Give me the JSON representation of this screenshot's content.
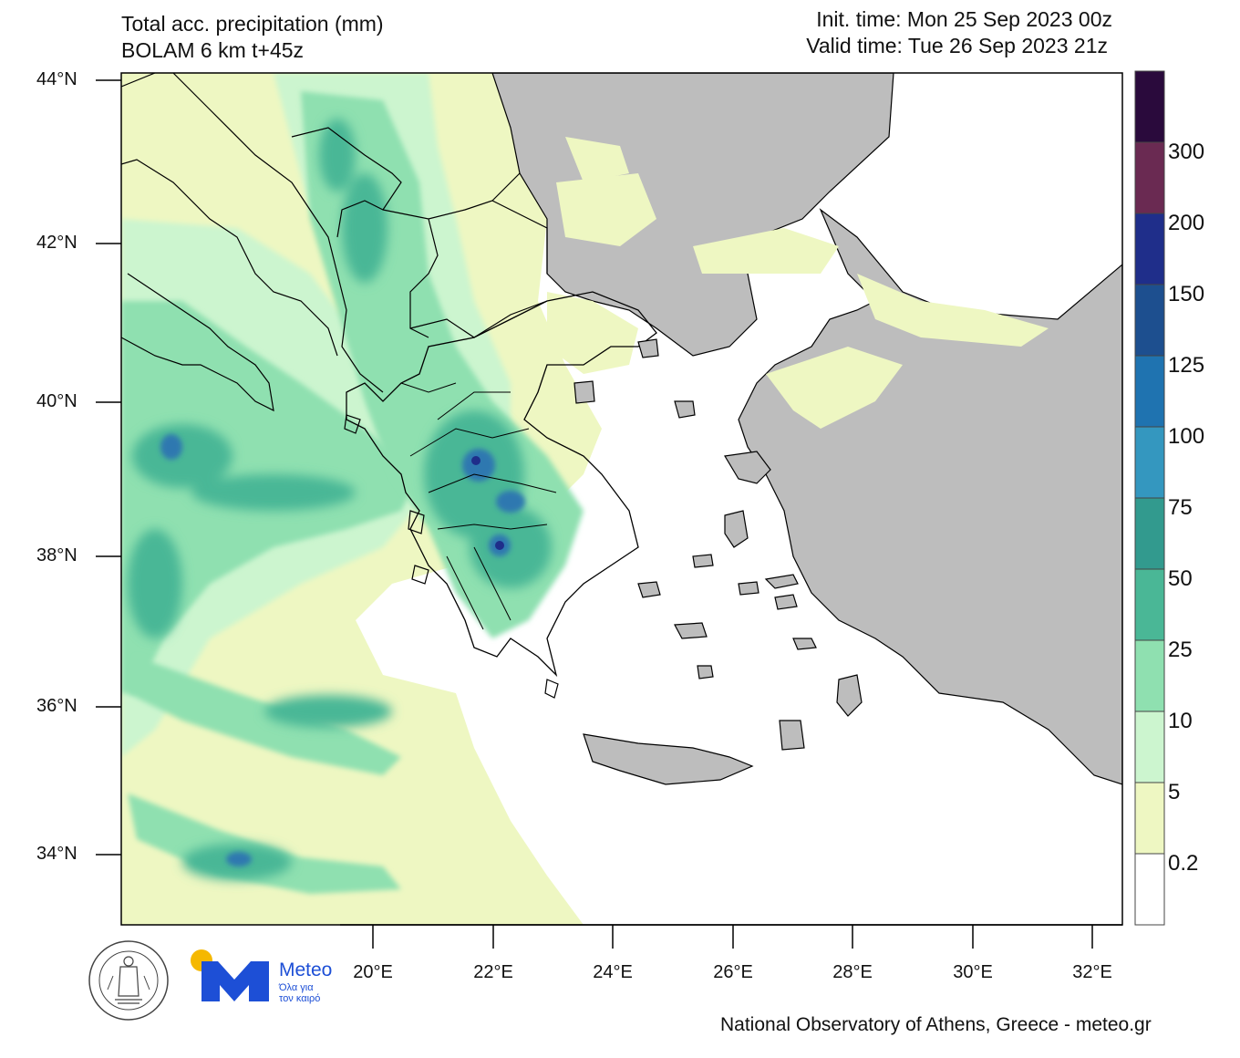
{
  "header": {
    "title": "Total acc. precipitation (mm)",
    "model": "BOLAM 6 km t+45z",
    "init_time": "Init. time: Mon 25 Sep 2023 00z",
    "valid_time": "Valid time: Tue 26 Sep 2023 21z"
  },
  "axes": {
    "lat_labels": [
      "44°N",
      "42°N",
      "40°N",
      "38°N",
      "36°N",
      "34°N"
    ],
    "lon_labels": [
      "20°E",
      "22°E",
      "24°E",
      "26°E",
      "28°E",
      "30°E",
      "32°E"
    ]
  },
  "colorbar": {
    "labels": [
      "300",
      "200",
      "150",
      "125",
      "100",
      "75",
      "50",
      "25",
      "10",
      "5",
      "0.2"
    ],
    "colors": [
      "#2a0a3c",
      "#6a2a52",
      "#1f2e8a",
      "#1d4f8f",
      "#1f73b0",
      "#3497bf",
      "#329a8e",
      "#4ab796",
      "#8fe0b0",
      "#ccf5cf",
      "#eef7c2",
      "#ffffff"
    ]
  },
  "legend_colors": {
    "land_dry": "#bdbdbd",
    "sea_dry": "#ffffff",
    "precip_light": "#eef7c2",
    "precip_5_10": "#ccf5cf",
    "precip_10_25": "#8fe0b0",
    "precip_25_50": "#4ab796",
    "precip_50_75": "#329a8e",
    "precip_high": "#1f2e8a"
  },
  "footer": {
    "credit": "National Observatory of Athens, Greece - meteo.gr",
    "meteo_brand": "Meteo",
    "meteo_tagline": "Όλα για\nτον καιρό"
  },
  "logos": {
    "noa_seal_text": "ΕΘΝΙΚΟΝ ΑΣΤΕΡΟΣΚΟΠΕΙΟΝ ΑΘΗΝΩΝ · NATIONAL OBSERVATORY OF ATHENS"
  }
}
